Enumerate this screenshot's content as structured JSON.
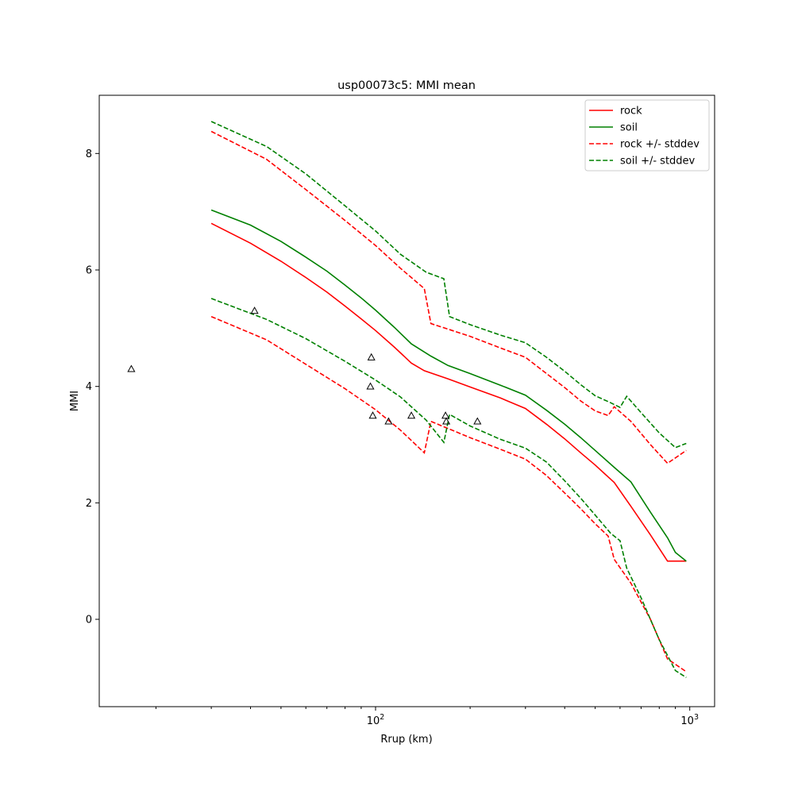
{
  "chart_data": {
    "type": "line",
    "title": "usp00073c5: MMI mean",
    "xlabel": "Rrup (km)",
    "ylabel": "MMI",
    "xscale": "log",
    "xlim": [
      13.2,
      1200
    ],
    "ylim": [
      -1.5,
      9.0
    ],
    "xticks": [
      {
        "value": 100,
        "base": "10",
        "exp": "2"
      },
      {
        "value": 1000,
        "base": "10",
        "exp": "3"
      }
    ],
    "yticks": [
      {
        "value": 0,
        "label": "0"
      },
      {
        "value": 2,
        "label": "2"
      },
      {
        "value": 4,
        "label": "4"
      },
      {
        "value": 6,
        "label": "6"
      },
      {
        "value": 8,
        "label": "8"
      }
    ],
    "grid": false,
    "legend_position": "upper-right",
    "series": [
      {
        "name": "rock",
        "color": "#ff0000",
        "style": "solid",
        "x": [
          30,
          40,
          50,
          60,
          70,
          80,
          90,
          100,
          115,
          130,
          143,
          170,
          200,
          250,
          300,
          350,
          400,
          450,
          500,
          575,
          650,
          750,
          850,
          975
        ],
        "y": [
          6.8,
          6.46,
          6.15,
          5.87,
          5.62,
          5.38,
          5.16,
          4.96,
          4.67,
          4.4,
          4.27,
          4.13,
          3.99,
          3.8,
          3.62,
          3.35,
          3.1,
          2.86,
          2.65,
          2.35,
          1.94,
          1.45,
          1.0,
          1.0
        ]
      },
      {
        "name": "soil",
        "color": "#008000",
        "style": "solid",
        "x": [
          30,
          40,
          50,
          60,
          70,
          80,
          90,
          100,
          115,
          130,
          150,
          170,
          200,
          250,
          300,
          350,
          400,
          450,
          500,
          575,
          650,
          750,
          850,
          900,
          975
        ],
        "y": [
          7.03,
          6.77,
          6.49,
          6.22,
          5.98,
          5.74,
          5.52,
          5.31,
          5.01,
          4.73,
          4.52,
          4.36,
          4.22,
          4.02,
          3.85,
          3.59,
          3.35,
          3.12,
          2.9,
          2.61,
          2.36,
          1.84,
          1.4,
          1.15,
          1.0
        ]
      },
      {
        "name": "rock +/- stddev",
        "color": "#ff0000",
        "style": "dashed",
        "x": [
          30,
          45,
          60,
          80,
          100,
          120,
          143,
          150,
          200,
          250,
          300,
          350,
          400,
          450,
          500,
          550,
          575,
          650,
          750,
          850,
          975
        ],
        "y": [
          8.38,
          7.9,
          7.38,
          6.85,
          6.42,
          6.03,
          5.68,
          5.08,
          4.86,
          4.66,
          4.5,
          4.22,
          3.98,
          3.75,
          3.58,
          3.5,
          3.65,
          3.4,
          3.0,
          2.68,
          2.9
        ]
      },
      {
        "name": "",
        "color": "#ff0000",
        "style": "dashed",
        "x": [
          30,
          45,
          60,
          80,
          100,
          120,
          143,
          150,
          200,
          250,
          300,
          350,
          400,
          450,
          500,
          550,
          575,
          650,
          750,
          850,
          975
        ],
        "y": [
          5.2,
          4.8,
          4.38,
          3.96,
          3.6,
          3.25,
          2.86,
          3.4,
          3.12,
          2.92,
          2.75,
          2.47,
          2.17,
          1.9,
          1.64,
          1.43,
          1.03,
          0.62,
          0.0,
          -0.68,
          -0.9
        ]
      },
      {
        "name": "soil +/- stddev",
        "color": "#008000",
        "style": "dashed",
        "x": [
          30,
          45,
          60,
          80,
          100,
          120,
          145,
          165,
          172,
          200,
          250,
          300,
          350,
          400,
          450,
          500,
          560,
          600,
          630,
          700,
          800,
          900,
          975
        ],
        "y": [
          8.55,
          8.12,
          7.65,
          7.1,
          6.67,
          6.27,
          5.96,
          5.85,
          5.2,
          5.06,
          4.88,
          4.75,
          4.5,
          4.26,
          4.03,
          3.84,
          3.72,
          3.64,
          3.83,
          3.55,
          3.2,
          2.95,
          3.02
        ]
      },
      {
        "name": "",
        "color": "#008000",
        "style": "dashed",
        "x": [
          30,
          45,
          60,
          80,
          100,
          120,
          145,
          165,
          172,
          200,
          250,
          300,
          350,
          400,
          450,
          500,
          560,
          600,
          630,
          700,
          800,
          900,
          975
        ],
        "y": [
          5.51,
          5.15,
          4.82,
          4.43,
          4.11,
          3.82,
          3.42,
          3.04,
          3.52,
          3.32,
          3.09,
          2.94,
          2.7,
          2.38,
          2.08,
          1.79,
          1.48,
          1.35,
          0.88,
          0.37,
          -0.35,
          -0.88,
          -1.0
        ]
      }
    ],
    "observations": {
      "marker": "triangle",
      "x": [
        16.7,
        41.2,
        96.3,
        97.0,
        98.0,
        110.0,
        130.0,
        167.0,
        168.0,
        211.0
      ],
      "y": [
        4.3,
        5.3,
        4.0,
        4.5,
        3.5,
        3.4,
        3.5,
        3.5,
        3.4,
        3.4
      ]
    }
  }
}
